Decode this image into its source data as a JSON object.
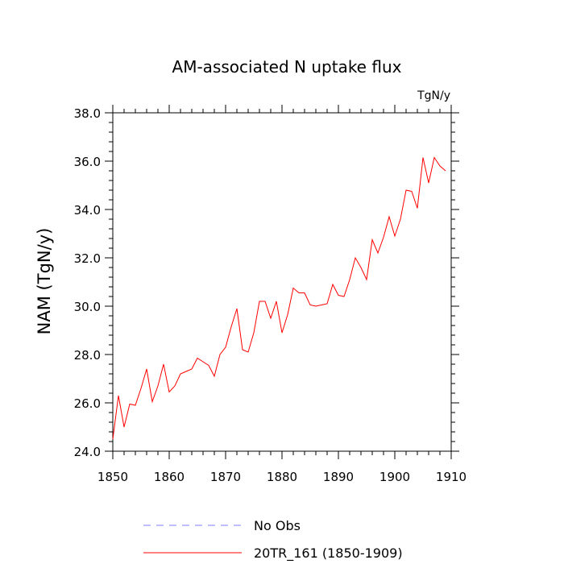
{
  "chart_data": {
    "type": "line",
    "title": "AM-associated N uptake flux",
    "units": "TgN/y",
    "xlabel": "",
    "ylabel": "NAM  (TgN/y)",
    "xlim": [
      1850,
      1910
    ],
    "ylim": [
      24.0,
      38.0
    ],
    "x_ticks": [
      1850,
      1860,
      1870,
      1880,
      1890,
      1900,
      1910
    ],
    "y_ticks": [
      "24.0",
      "26.0",
      "28.0",
      "30.0",
      "32.0",
      "34.0",
      "36.0",
      "38.0"
    ],
    "grid": false,
    "legend_position": "bottom",
    "series": [
      {
        "name": "20TR_161 (1850-1909)",
        "color": "#ff0000",
        "style": "solid",
        "x": [
          1850,
          1851,
          1852,
          1853,
          1854,
          1855,
          1856,
          1857,
          1858,
          1859,
          1860,
          1861,
          1862,
          1863,
          1864,
          1865,
          1866,
          1867,
          1868,
          1869,
          1870,
          1871,
          1872,
          1873,
          1874,
          1875,
          1876,
          1877,
          1878,
          1879,
          1880,
          1881,
          1882,
          1883,
          1884,
          1885,
          1886,
          1887,
          1888,
          1889,
          1890,
          1891,
          1892,
          1893,
          1894,
          1895,
          1896,
          1897,
          1898,
          1899,
          1900,
          1901,
          1902,
          1903,
          1904,
          1905,
          1906,
          1907,
          1908,
          1909
        ],
        "values": [
          24.5,
          26.3,
          25.0,
          25.95,
          25.9,
          26.6,
          27.4,
          26.05,
          26.7,
          27.6,
          26.45,
          26.7,
          27.2,
          27.3,
          27.4,
          27.85,
          27.7,
          27.55,
          27.1,
          28.0,
          28.3,
          29.15,
          29.9,
          28.2,
          28.1,
          28.9,
          30.2,
          30.2,
          29.5,
          30.2,
          28.9,
          29.65,
          30.75,
          30.55,
          30.55,
          30.05,
          30.0,
          30.05,
          30.1,
          30.9,
          30.45,
          30.4,
          31.1,
          32.0,
          31.6,
          31.1,
          32.75,
          32.2,
          32.85,
          33.7,
          32.9,
          33.6,
          34.8,
          34.75,
          34.05,
          36.15,
          35.1,
          36.15,
          35.8,
          35.6
        ]
      },
      {
        "name": "No Obs",
        "color": "#7b7bff",
        "style": "dashed",
        "x": [],
        "values": []
      }
    ]
  }
}
